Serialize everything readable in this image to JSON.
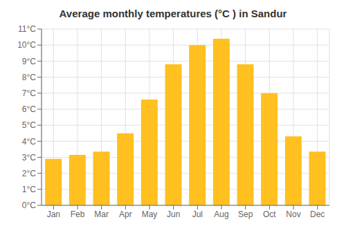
{
  "chart_data": {
    "type": "bar",
    "title": "Average monthly temperatures (°C ) in Sandur",
    "categories": [
      "Jan",
      "Feb",
      "Mar",
      "Apr",
      "May",
      "Jun",
      "Jul",
      "Aug",
      "Sep",
      "Oct",
      "Nov",
      "Dec"
    ],
    "values": [
      2.9,
      3.15,
      3.35,
      4.5,
      6.6,
      8.8,
      10.0,
      10.4,
      8.8,
      7.0,
      4.3,
      3.35
    ],
    "color": "#FFC020",
    "ylim": [
      0,
      11
    ],
    "yticks": [
      {
        "value": 0,
        "label": "0°C"
      },
      {
        "value": 1,
        "label": "1°C"
      },
      {
        "value": 2,
        "label": "2°C"
      },
      {
        "value": 3,
        "label": "3°C"
      },
      {
        "value": 4,
        "label": "4°C"
      },
      {
        "value": 5,
        "label": "5°C"
      },
      {
        "value": 6,
        "label": "6°C"
      },
      {
        "value": 7,
        "label": "7°C"
      },
      {
        "value": 8,
        "label": "8°C"
      },
      {
        "value": 9,
        "label": "9°C"
      },
      {
        "value": 10,
        "label": "10°C"
      },
      {
        "value": 11,
        "label": "11°C"
      }
    ],
    "grid": true
  }
}
